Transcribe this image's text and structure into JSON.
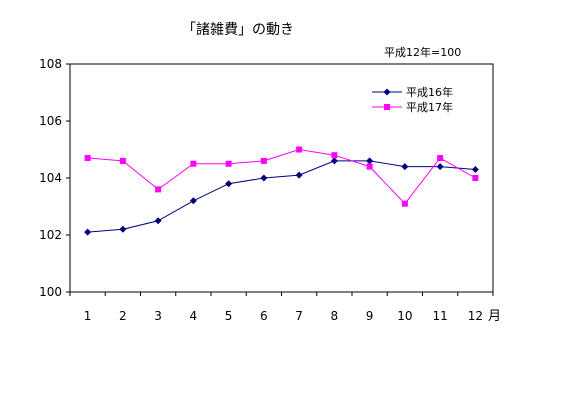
{
  "chart_data": {
    "type": "line",
    "title": "「諸雑費」の動き",
    "subtitle": "平成12年=100",
    "xlabel": "",
    "x_unit": "月",
    "ylabel": "",
    "categories": [
      "1",
      "2",
      "3",
      "4",
      "5",
      "6",
      "7",
      "8",
      "9",
      "10",
      "11",
      "12"
    ],
    "ylim": [
      100,
      108
    ],
    "yticks": [
      100,
      102,
      104,
      106,
      108
    ],
    "grid": false,
    "legend_position": "top-right",
    "series": [
      {
        "name": "平成16年",
        "color": "#000080",
        "marker": "diamond",
        "values": [
          102.1,
          102.2,
          102.5,
          103.2,
          103.8,
          104.0,
          104.1,
          104.6,
          104.6,
          104.4,
          104.4,
          104.3
        ]
      },
      {
        "name": "平成17年",
        "color": "#ff00ff",
        "marker": "square",
        "values": [
          104.7,
          104.6,
          103.6,
          104.5,
          104.5,
          104.6,
          105.0,
          104.8,
          104.4,
          103.1,
          104.7,
          104.0
        ]
      }
    ]
  }
}
